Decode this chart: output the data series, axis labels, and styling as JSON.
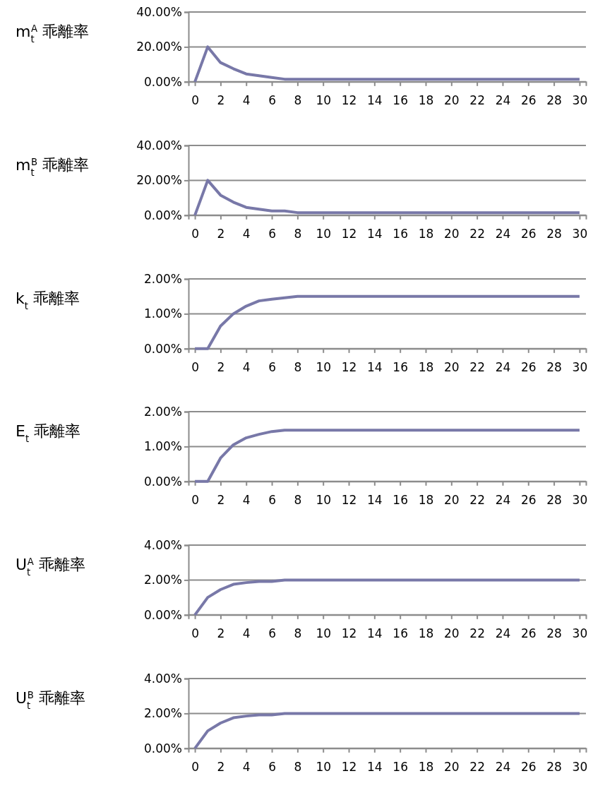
{
  "chart_data": [
    {
      "type": "line",
      "title": "m$_{t}$$^{A}$ 乖離率",
      "x": [
        0,
        1,
        2,
        3,
        4,
        5,
        6,
        7,
        8,
        9,
        10,
        11,
        12,
        13,
        14,
        15,
        16,
        17,
        18,
        19,
        20,
        21,
        22,
        23,
        24,
        25,
        26,
        27,
        28,
        29,
        30
      ],
      "xlim": [
        -0.5,
        30.5
      ],
      "xticks": [
        0,
        2,
        4,
        6,
        8,
        10,
        12,
        14,
        16,
        18,
        20,
        22,
        24,
        26,
        28,
        30
      ],
      "ylim": [
        0,
        40
      ],
      "yticks": [
        {
          "value": 0,
          "label": "0.00%"
        },
        {
          "value": 20,
          "label": "20.00%"
        },
        {
          "value": 40,
          "label": "40.00%"
        }
      ],
      "grid": "y",
      "series": [
        {
          "color": "#7878a8",
          "values": [
            0,
            20,
            11,
            7.5,
            4.5,
            3.5,
            2.5,
            1.5,
            1.5,
            1.5,
            1.5,
            1.5,
            1.5,
            1.5,
            1.5,
            1.5,
            1.5,
            1.5,
            1.5,
            1.5,
            1.5,
            1.5,
            1.5,
            1.5,
            1.5,
            1.5,
            1.5,
            1.5,
            1.5,
            1.5,
            1.5
          ]
        }
      ]
    },
    {
      "type": "line",
      "title": "m$_{t}$$^{B}$ 乖離率",
      "x": [
        0,
        1,
        2,
        3,
        4,
        5,
        6,
        7,
        8,
        9,
        10,
        11,
        12,
        13,
        14,
        15,
        16,
        17,
        18,
        19,
        20,
        21,
        22,
        23,
        24,
        25,
        26,
        27,
        28,
        29,
        30
      ],
      "xlim": [
        -0.5,
        30.5
      ],
      "xticks": [
        0,
        2,
        4,
        6,
        8,
        10,
        12,
        14,
        16,
        18,
        20,
        22,
        24,
        26,
        28,
        30
      ],
      "ylim": [
        0,
        40
      ],
      "yticks": [
        {
          "value": 0,
          "label": "0.00%"
        },
        {
          "value": 20,
          "label": "20.00%"
        },
        {
          "value": 40,
          "label": "40.00%"
        }
      ],
      "grid": "y",
      "series": [
        {
          "color": "#7878a8",
          "values": [
            0,
            20,
            11.5,
            7.5,
            4.5,
            3.5,
            2.5,
            2.5,
            1.5,
            1.5,
            1.5,
            1.5,
            1.5,
            1.5,
            1.5,
            1.5,
            1.5,
            1.5,
            1.5,
            1.5,
            1.5,
            1.5,
            1.5,
            1.5,
            1.5,
            1.5,
            1.5,
            1.5,
            1.5,
            1.5,
            1.5
          ]
        }
      ]
    },
    {
      "type": "line",
      "title": "k$_{t}$ 乖離率",
      "x": [
        0,
        1,
        2,
        3,
        4,
        5,
        6,
        7,
        8,
        9,
        10,
        11,
        12,
        13,
        14,
        15,
        16,
        17,
        18,
        19,
        20,
        21,
        22,
        23,
        24,
        25,
        26,
        27,
        28,
        29,
        30
      ],
      "xlim": [
        -0.5,
        30.5
      ],
      "xticks": [
        0,
        2,
        4,
        6,
        8,
        10,
        12,
        14,
        16,
        18,
        20,
        22,
        24,
        26,
        28,
        30
      ],
      "ylim": [
        0,
        2
      ],
      "yticks": [
        {
          "value": 0,
          "label": "0.00%"
        },
        {
          "value": 1,
          "label": "1.00%"
        },
        {
          "value": 2,
          "label": "2.00%"
        }
      ],
      "grid": "y",
      "series": [
        {
          "color": "#7878a8",
          "values": [
            0,
            0,
            0.65,
            1.0,
            1.22,
            1.37,
            1.42,
            1.46,
            1.5,
            1.5,
            1.5,
            1.5,
            1.5,
            1.5,
            1.5,
            1.5,
            1.5,
            1.5,
            1.5,
            1.5,
            1.5,
            1.5,
            1.5,
            1.5,
            1.5,
            1.5,
            1.5,
            1.5,
            1.5,
            1.5,
            1.5
          ]
        }
      ]
    },
    {
      "type": "line",
      "title": "E$_{t}$ 乖離率",
      "x": [
        0,
        1,
        2,
        3,
        4,
        5,
        6,
        7,
        8,
        9,
        10,
        11,
        12,
        13,
        14,
        15,
        16,
        17,
        18,
        19,
        20,
        21,
        22,
        23,
        24,
        25,
        26,
        27,
        28,
        29,
        30
      ],
      "xlim": [
        -0.5,
        30.5
      ],
      "xticks": [
        0,
        2,
        4,
        6,
        8,
        10,
        12,
        14,
        16,
        18,
        20,
        22,
        24,
        26,
        28,
        30
      ],
      "ylim": [
        0,
        2
      ],
      "yticks": [
        {
          "value": 0,
          "label": "0.00%"
        },
        {
          "value": 1,
          "label": "1.00%"
        },
        {
          "value": 2,
          "label": "2.00%"
        }
      ],
      "grid": "y",
      "series": [
        {
          "color": "#7878a8",
          "values": [
            0,
            0,
            0.67,
            1.05,
            1.25,
            1.35,
            1.43,
            1.47,
            1.47,
            1.47,
            1.47,
            1.47,
            1.47,
            1.47,
            1.47,
            1.47,
            1.47,
            1.47,
            1.47,
            1.47,
            1.47,
            1.47,
            1.47,
            1.47,
            1.47,
            1.47,
            1.47,
            1.47,
            1.47,
            1.47,
            1.47
          ]
        }
      ]
    },
    {
      "type": "line",
      "title": "U$_{t}$$^{A}$ 乖離率",
      "x": [
        0,
        1,
        2,
        3,
        4,
        5,
        6,
        7,
        8,
        9,
        10,
        11,
        12,
        13,
        14,
        15,
        16,
        17,
        18,
        19,
        20,
        21,
        22,
        23,
        24,
        25,
        26,
        27,
        28,
        29,
        30
      ],
      "xlim": [
        -0.5,
        30.5
      ],
      "xticks": [
        0,
        2,
        4,
        6,
        8,
        10,
        12,
        14,
        16,
        18,
        20,
        22,
        24,
        26,
        28,
        30
      ],
      "ylim": [
        0,
        4
      ],
      "yticks": [
        {
          "value": 0,
          "label": "0.00%"
        },
        {
          "value": 2,
          "label": "2.00%"
        },
        {
          "value": 4,
          "label": "4.00%"
        }
      ],
      "grid": "y",
      "series": [
        {
          "color": "#7878a8",
          "values": [
            0,
            1.0,
            1.45,
            1.75,
            1.85,
            1.92,
            1.92,
            2.0,
            2.0,
            2.0,
            2.0,
            2.0,
            2.0,
            2.0,
            2.0,
            2.0,
            2.0,
            2.0,
            2.0,
            2.0,
            2.0,
            2.0,
            2.0,
            2.0,
            2.0,
            2.0,
            2.0,
            2.0,
            2.0,
            2.0,
            2.0
          ]
        }
      ]
    },
    {
      "type": "line",
      "title": "U$_{t}$$^{B}$ 乖離率",
      "x": [
        0,
        1,
        2,
        3,
        4,
        5,
        6,
        7,
        8,
        9,
        10,
        11,
        12,
        13,
        14,
        15,
        16,
        17,
        18,
        19,
        20,
        21,
        22,
        23,
        24,
        25,
        26,
        27,
        28,
        29,
        30
      ],
      "xlim": [
        -0.5,
        30.5
      ],
      "xticks": [
        0,
        2,
        4,
        6,
        8,
        10,
        12,
        14,
        16,
        18,
        20,
        22,
        24,
        26,
        28,
        30
      ],
      "ylim": [
        0,
        4
      ],
      "yticks": [
        {
          "value": 0,
          "label": "0.00%"
        },
        {
          "value": 2,
          "label": "2.00%"
        },
        {
          "value": 4,
          "label": "4.00%"
        }
      ],
      "grid": "y",
      "series": [
        {
          "color": "#7878a8",
          "values": [
            0,
            1.0,
            1.45,
            1.75,
            1.85,
            1.92,
            1.92,
            2.0,
            2.0,
            2.0,
            2.0,
            2.0,
            2.0,
            2.0,
            2.0,
            2.0,
            2.0,
            2.0,
            2.0,
            2.0,
            2.0,
            2.0,
            2.0,
            2.0,
            2.0,
            2.0,
            2.0,
            2.0,
            2.0,
            2.0,
            2.0
          ]
        }
      ]
    }
  ]
}
